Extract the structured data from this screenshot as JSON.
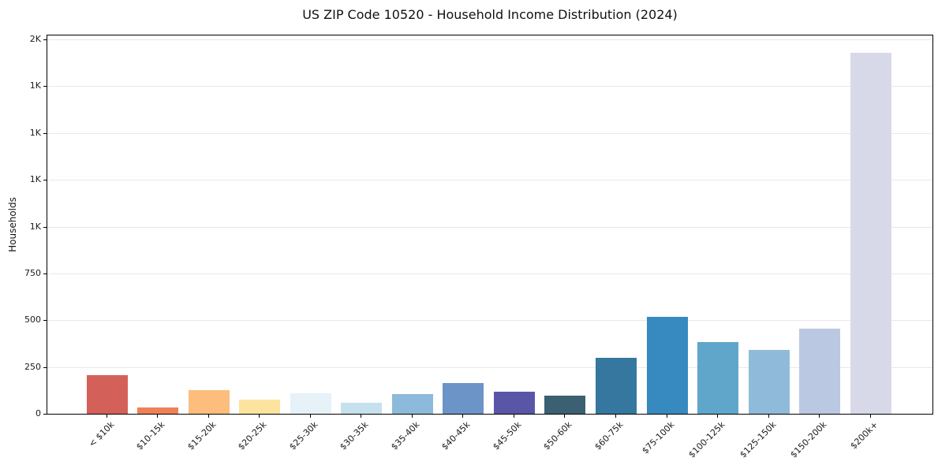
{
  "title": "US ZIP Code 10520 - Household Income Distribution (2024)",
  "chart_data": {
    "type": "bar",
    "title": "US ZIP Code 10520 - Household Income Distribution (2024)",
    "xlabel": "",
    "ylabel": "Households",
    "ylim": [
      0,
      2030
    ],
    "grid": "horizontal-light",
    "legend": "none",
    "categories": [
      "< $10k",
      "$10-15k",
      "$15-20k",
      "$20-25k",
      "$25-30k",
      "$30-35k",
      "$35-40k",
      "$40-45k",
      "$45-50k",
      "$50-60k",
      "$60-75k",
      "$75-100k",
      "$100-125k",
      "$125-150k",
      "$150-200k",
      "$200k+"
    ],
    "values": [
      205,
      35,
      128,
      74,
      110,
      57,
      104,
      163,
      117,
      99,
      301,
      516,
      383,
      342,
      453,
      1931
    ],
    "bar_colors": [
      "#d4605a",
      "#ef8159",
      "#fcbd7d",
      "#fce3a0",
      "#e6f2f8",
      "#c5e1ee",
      "#8dbada",
      "#6c94c6",
      "#5a56a7",
      "#3a6072",
      "#35779e",
      "#378ac0",
      "#5fa6ca",
      "#90bada",
      "#bac9e1",
      "#d8d9e8"
    ],
    "yticks": [
      {
        "value": 0,
        "label": "0"
      },
      {
        "value": 250,
        "label": "250"
      },
      {
        "value": 500,
        "label": "500"
      },
      {
        "value": 750,
        "label": "750"
      },
      {
        "value": 1000,
        "label": "1K"
      },
      {
        "value": 1250,
        "label": "1K"
      },
      {
        "value": 1500,
        "label": "1K"
      },
      {
        "value": 1750,
        "label": "1K"
      },
      {
        "value": 2000,
        "label": "2K"
      }
    ]
  }
}
